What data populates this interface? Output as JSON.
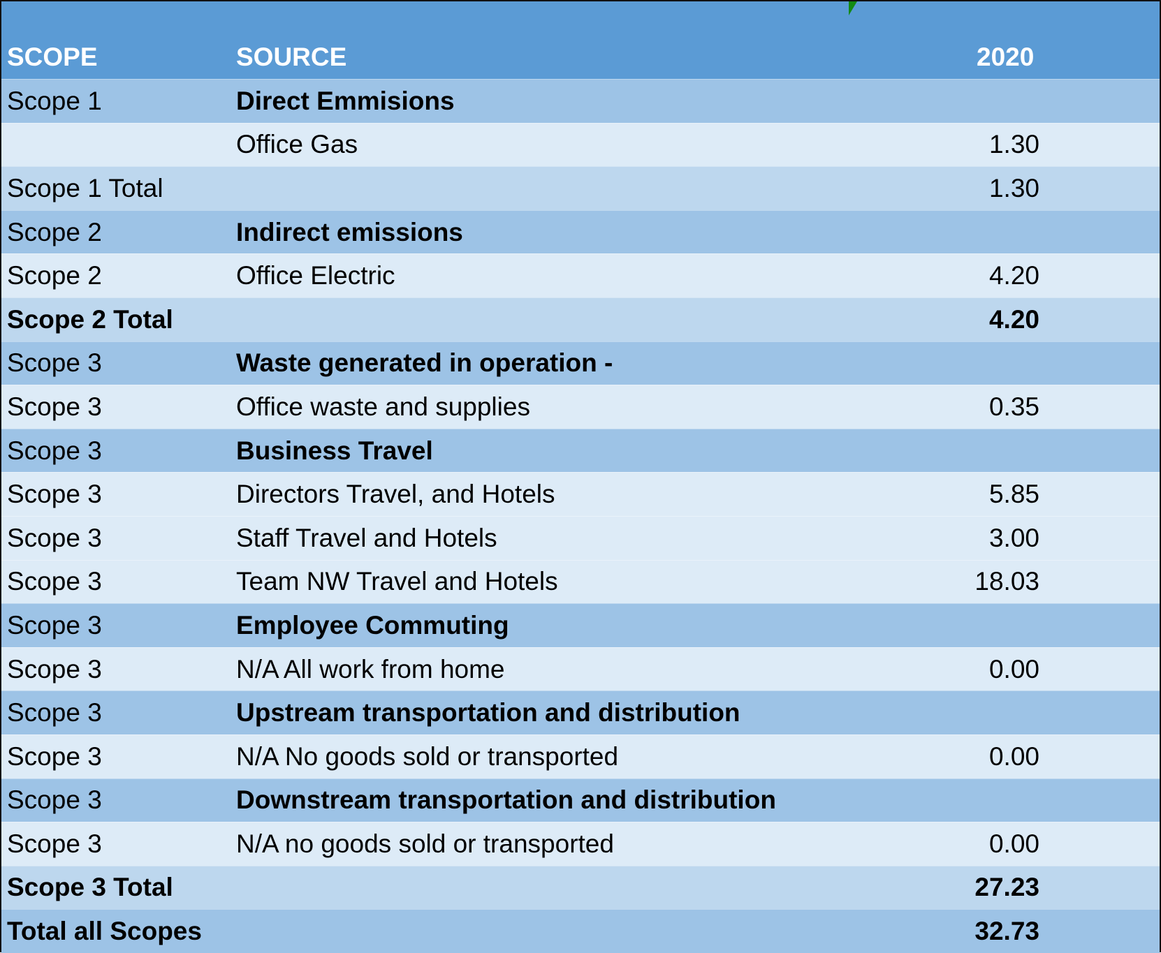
{
  "header": {
    "scope": "SCOPE",
    "source": "SOURCE",
    "year": "2020"
  },
  "colors": {
    "header": "#5B9BD5",
    "section_row": "#9DC3E6",
    "item_row": "#DDEBF7",
    "total_row": "#BDD7EE",
    "comment_marker": "#138a13"
  },
  "rows": [
    {
      "type": "section",
      "scope": "Scope 1",
      "source": "Direct Emmisions",
      "value": ""
    },
    {
      "type": "item",
      "scope": "",
      "source": "Office Gas",
      "value": "1.30"
    },
    {
      "type": "total",
      "scope": "Scope 1 Total",
      "source": "",
      "value": "1.30",
      "bold": false
    },
    {
      "type": "section",
      "scope": "Scope 2",
      "source": "Indirect emissions",
      "value": ""
    },
    {
      "type": "item",
      "scope": "Scope 2",
      "source": "Office Electric",
      "value": "4.20"
    },
    {
      "type": "total",
      "scope": "Scope 2 Total",
      "source": "",
      "value": "4.20",
      "bold": true
    },
    {
      "type": "section",
      "scope": "Scope 3",
      "source": "Waste generated in operation -",
      "value": ""
    },
    {
      "type": "item",
      "scope": "Scope 3",
      "source": "Office waste and supplies",
      "value": "0.35"
    },
    {
      "type": "section",
      "scope": "Scope 3",
      "source": "Business Travel",
      "value": ""
    },
    {
      "type": "item",
      "scope": "Scope 3",
      "source": "Directors Travel, and Hotels",
      "value": "5.85"
    },
    {
      "type": "item",
      "scope": "Scope 3",
      "source": "Staff Travel and Hotels",
      "value": "3.00"
    },
    {
      "type": "item",
      "scope": "Scope 3",
      "source": "Team NW Travel and Hotels",
      "value": "18.03"
    },
    {
      "type": "section",
      "scope": "Scope 3",
      "source": "Employee Commuting",
      "value": ""
    },
    {
      "type": "item",
      "scope": "Scope 3",
      "source": "N/A All work from home",
      "value": "0.00"
    },
    {
      "type": "section",
      "scope": "Scope 3",
      "source": "Upstream transportation and distribution",
      "value": ""
    },
    {
      "type": "item",
      "scope": "Scope 3",
      "source": "N/A No goods sold or transported",
      "value": "0.00"
    },
    {
      "type": "section",
      "scope": "Scope 3",
      "source": "Downstream transportation and distribution",
      "value": ""
    },
    {
      "type": "item",
      "scope": "Scope 3",
      "source": "N/A no goods sold or transported",
      "value": "0.00"
    },
    {
      "type": "total",
      "scope": "Scope 3 Total",
      "source": "",
      "value": "27.23",
      "bold": true
    },
    {
      "type": "grand",
      "scope": "Total all Scopes",
      "source": "",
      "value": "32.73",
      "bold": true
    }
  ]
}
